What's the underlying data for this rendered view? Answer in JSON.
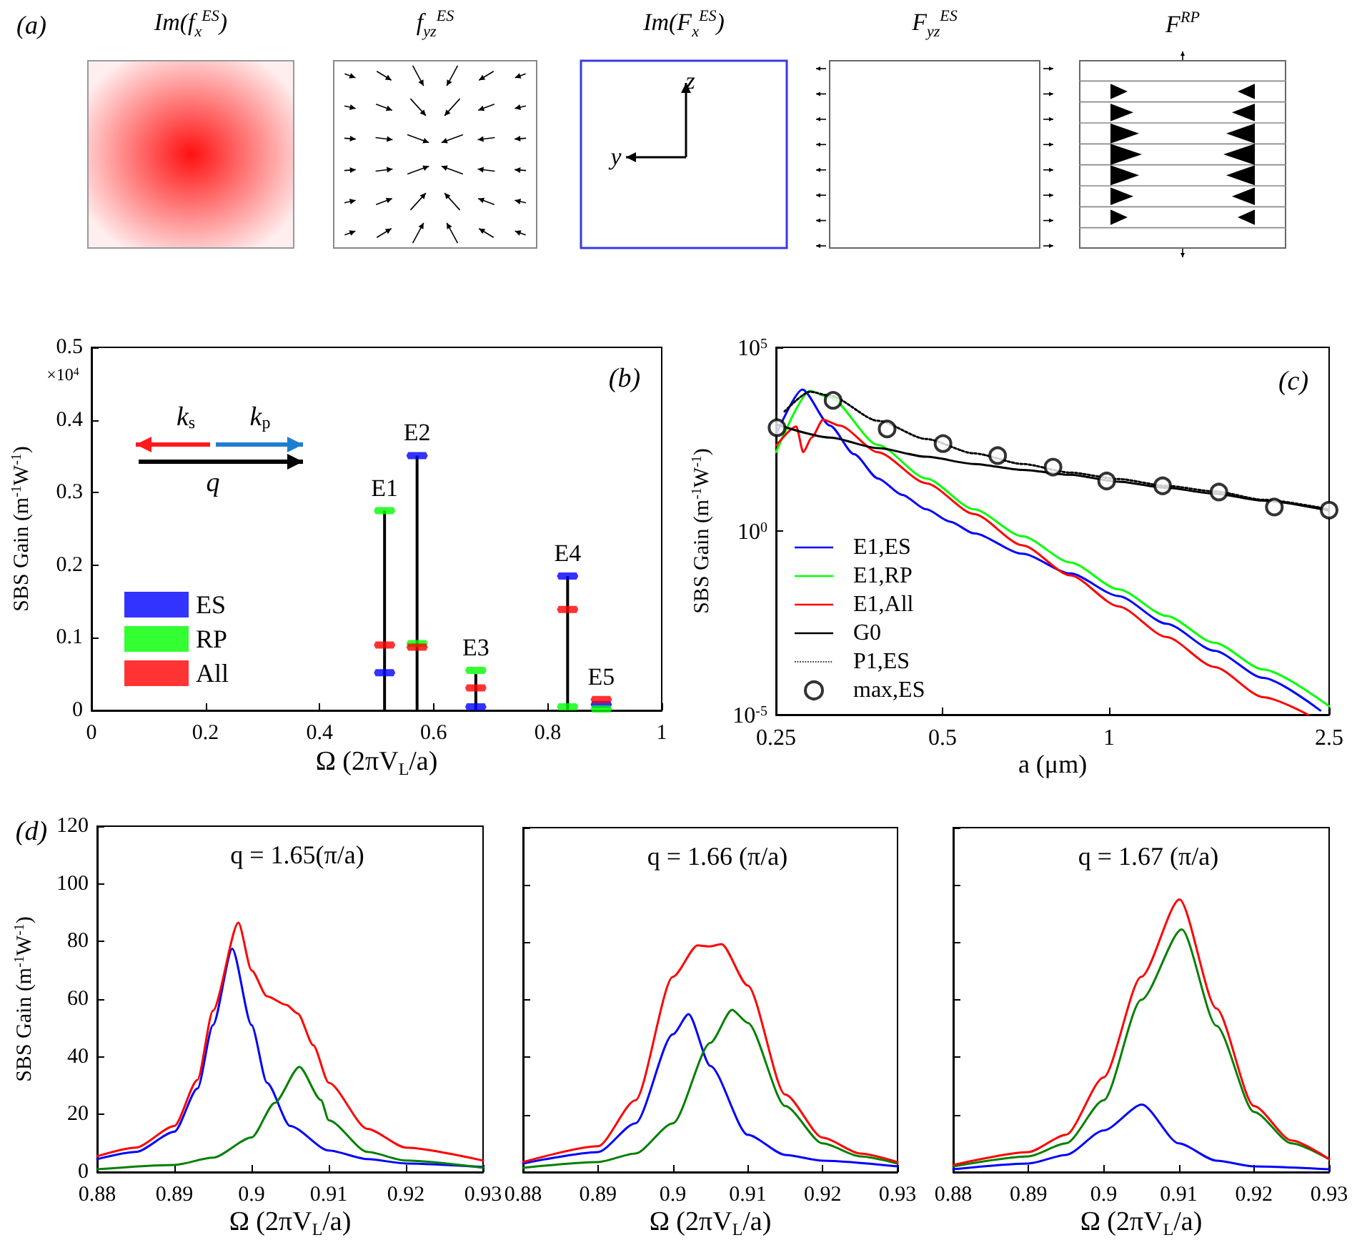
{
  "chart_data": [
    {
      "type": "other",
      "annotations": [
        "(a)",
        "Im(f$_{x}$$^{ES}$)",
        "f$_{yz}$$^{ES}$",
        "Im(F$_{x}$$^{ES}$)",
        "F$_{yz}$$^{ES}$",
        "F$^{RP}$",
        "z",
        "y"
      ]
    },
    {
      "type": "scatter",
      "xlabel": "Ω (2πV$_{L}$/a)",
      "ylabel": "SBS Gain (m$^{-1}$W$^{-1}$)",
      "xlim": [
        0,
        1
      ],
      "xticks": [
        0,
        0.2,
        0.4,
        0.6,
        0.8,
        1
      ],
      "ylim": [
        0,
        0.5
      ],
      "yticks": [
        0,
        0.1,
        0.2,
        0.3,
        0.4,
        0.5
      ],
      "x": [
        0.514,
        0.571,
        0.674,
        0.835,
        0.894
      ],
      "legend": "bottom left",
      "series": [
        {
          "type": "bar",
          "color": "#000000",
          "values": [
            0.275,
            0.351,
            0.05,
            0.185,
            null
          ]
        },
        {
          "name": "ES",
          "color": "#0000ff",
          "values": [
            0.052,
            0.351,
            0.005,
            0.185,
            0.008
          ]
        },
        {
          "name": "RP",
          "color": "#00ff00",
          "values": [
            0.275,
            0.092,
            0.055,
            0.005,
            0.002
          ]
        },
        {
          "name": "All",
          "color": "#ff0000",
          "values": [
            0.09,
            0.087,
            0.031,
            0.139,
            0.015
          ]
        }
      ],
      "annotations": [
        "(b)",
        "×10$^{4}$",
        "k$_{s}$",
        "k$_{p}$",
        "q",
        {
          "text": "E1",
          "x": 0.514,
          "y": 0.275
        },
        {
          "text": "E2",
          "x": 0.571,
          "y": 0.351
        },
        {
          "text": "E3",
          "x": 0.674,
          "y": 0.055
        },
        {
          "text": "E4",
          "x": 0.835,
          "y": 0.185
        },
        {
          "text": "E5",
          "x": 0.894,
          "y": 0.015
        }
      ]
    },
    {
      "type": "line",
      "log": "xy",
      "xlabel": "a (μm)",
      "ylabel": "SBS Gain (m$^{-1}$W$^{-1}$)",
      "xlim": [
        0.25,
        2.5
      ],
      "xticks": [
        0.25,
        0.5,
        1,
        2.5
      ],
      "ylim": [
        1e-05,
        100000
      ],
      "yticks": [
        {
          "value": 1e-05,
          "label": "10$^{-5}$"
        },
        {
          "value": 1,
          "label": "10$^{0}$"
        },
        {
          "value": 100000,
          "label": "10$^{5}$"
        }
      ],
      "legend": "bottom left",
      "marker": "none",
      "annotations": [
        "(c)"
      ],
      "series": [
        {
          "name": "E1,ES",
          "color": "#0000ff",
          "x": [
            0.251,
            0.279,
            0.313,
            0.346,
            0.382,
            0.423,
            0.467,
            0.516,
            0.57,
            0.697,
            0.851,
            1.04,
            1.27,
            1.55,
            1.9,
            2.41
          ],
          "values": [
            480,
            7100,
            740,
            123,
            27,
            9.6,
            3.9,
            1.8,
            0.86,
            0.24,
            0.07,
            0.017,
            0.003,
            0.00055,
            0.0001,
            1.3e-05
          ]
        },
        {
          "name": "E1,RP",
          "color": "#00ff00",
          "x": [
            0.25,
            0.288,
            0.313,
            0.382,
            0.467,
            0.57,
            0.697,
            0.851,
            1.04,
            1.27,
            1.55,
            1.9,
            2.5
          ],
          "values": [
            140,
            6500,
            4300,
            220,
            27,
            3.9,
            0.72,
            0.14,
            0.026,
            0.0049,
            0.00091,
            0.00017,
            1.7e-05
          ]
        },
        {
          "name": "E1,All",
          "color": "#ff0000",
          "x": [
            0.25,
            0.272,
            0.28,
            0.29,
            0.304,
            0.326,
            0.382,
            0.467,
            0.57,
            0.697,
            0.851,
            1.04,
            1.27,
            1.55,
            1.9,
            2.29
          ],
          "values": [
            210,
            700,
            140,
            350,
            1070,
            740,
            140,
            20,
            2.9,
            0.41,
            0.062,
            0.0089,
            0.0013,
            0.0002,
            3e-05,
            1e-05
          ]
        },
        {
          "name": "G0",
          "color": "#000000",
          "x": [
            0.25,
            0.313,
            0.382,
            0.467,
            0.57,
            0.697,
            0.851,
            1.04,
            1.27,
            1.55,
            1.9,
            2.5
          ],
          "values": [
            800,
            350,
            180,
            105,
            67,
            46,
            34,
            22,
            15,
            10.4,
            6.7,
            3.6
          ]
        },
        {
          "name": "P1,ES",
          "color": "#000000",
          "line_style": "dotted",
          "x": [
            0.259,
            0.288,
            0.313,
            0.382,
            0.467,
            0.57,
            0.697,
            0.851,
            1.04,
            1.27,
            1.55,
            1.9,
            2.5
          ],
          "values": [
            1800,
            6200,
            4800,
            1000,
            320,
            130,
            67,
            39,
            26,
            17,
            12,
            7.1,
            3.9
          ]
        },
        {
          "name": "max,ES",
          "type": "scatter",
          "marker": "circle",
          "color": "#000000",
          "x": [
            0.251,
            0.317,
            0.397,
            0.501,
            0.629,
            0.792,
            0.99,
            1.25,
            1.58,
            1.99,
            2.5
          ],
          "values": [
            650,
            3600,
            600,
            240,
            113,
            55,
            23,
            17,
            11.5,
            4.5,
            3.7
          ]
        }
      ]
    },
    {
      "type": "line",
      "title": "q = 1.65(π/a)",
      "xlabel": "Ω (2πV$_{L}$/a)",
      "ylabel": "SBS Gain (m$^{-1}$W$^{-1}$)",
      "xlim": [
        0.88,
        0.93
      ],
      "xticks": [
        0.88,
        0.89,
        0.9,
        0.91,
        0.92,
        0.93
      ],
      "ylim": [
        0,
        120
      ],
      "yticks": [
        0,
        20,
        40,
        60,
        80,
        100,
        120
      ],
      "marker": "none",
      "annotations": [
        "(d)"
      ],
      "series": [
        {
          "color": "#0000ff",
          "x": [
            0.88,
            0.885,
            0.89,
            0.893,
            0.895,
            0.8975,
            0.9,
            0.902,
            0.905,
            0.91,
            0.915,
            0.92,
            0.93
          ],
          "values": [
            4.5,
            7,
            14,
            29,
            51,
            77.5,
            51,
            31,
            16,
            7.5,
            4.5,
            3,
            1.8
          ]
        },
        {
          "color": "#008000",
          "x": [
            0.88,
            0.89,
            0.895,
            0.9,
            0.903,
            0.9062,
            0.909,
            0.91,
            0.915,
            0.92,
            0.93
          ],
          "values": [
            1,
            2.5,
            5,
            12,
            24,
            36.5,
            25,
            18,
            7,
            4,
            1.5
          ]
        },
        {
          "color": "#ff0000",
          "x": [
            0.88,
            0.885,
            0.89,
            0.893,
            0.895,
            0.8983,
            0.9,
            0.902,
            0.9045,
            0.906,
            0.908,
            0.91,
            0.915,
            0.92,
            0.93
          ],
          "values": [
            5.5,
            8.5,
            16,
            32,
            56,
            86.5,
            70,
            61,
            58,
            55,
            44,
            31,
            15,
            8.5,
            4
          ]
        }
      ]
    },
    {
      "type": "line",
      "title": "q = 1.66 (π/a)",
      "xlabel": "Ω (2πV$_{L}$/a)",
      "xlim": [
        0.88,
        0.93
      ],
      "xticks": [
        0.88,
        0.89,
        0.9,
        0.91,
        0.92,
        0.93
      ],
      "ylim": [
        0,
        120
      ],
      "yticks": [
        0,
        20,
        40,
        60,
        80,
        100,
        120
      ],
      "tick_labels": "x",
      "marker": "none",
      "series": [
        {
          "color": "#0000ff",
          "x": [
            0.88,
            0.89,
            0.895,
            0.9,
            0.9021,
            0.905,
            0.91,
            0.915,
            0.92,
            0.93
          ],
          "values": [
            3,
            7,
            17,
            48,
            55,
            37,
            13,
            6,
            4,
            2
          ]
        },
        {
          "color": "#008000",
          "x": [
            0.88,
            0.89,
            0.895,
            0.9,
            0.905,
            0.9079,
            0.91,
            0.915,
            0.92,
            0.925,
            0.93
          ],
          "values": [
            1.5,
            3.5,
            6.5,
            17,
            45,
            56.5,
            52,
            23,
            10,
            5.5,
            3
          ]
        },
        {
          "color": "#ff0000",
          "x": [
            0.88,
            0.89,
            0.895,
            0.9,
            0.9033,
            0.9048,
            0.9065,
            0.91,
            0.915,
            0.92,
            0.925,
            0.93
          ],
          "values": [
            3.5,
            9,
            25,
            68,
            79,
            78.6,
            79.4,
            65,
            27,
            12,
            6.5,
            3.5
          ]
        }
      ]
    },
    {
      "type": "line",
      "title": "q = 1.67 (π/a)",
      "xlabel": "Ω (2πV$_{L}$/a)",
      "xlim": [
        0.88,
        0.93
      ],
      "xticks": [
        0.88,
        0.89,
        0.9,
        0.91,
        0.92,
        0.93
      ],
      "ylim": [
        0,
        120
      ],
      "yticks": [
        0,
        20,
        40,
        60,
        80,
        100,
        120
      ],
      "tick_labels": "x",
      "marker": "none",
      "series": [
        {
          "color": "#0000ff",
          "x": [
            0.88,
            0.89,
            0.895,
            0.9,
            0.9051,
            0.91,
            0.915,
            0.92,
            0.93
          ],
          "values": [
            1,
            3,
            6,
            14.5,
            23.5,
            10,
            4,
            2,
            1
          ]
        },
        {
          "color": "#008000",
          "x": [
            0.88,
            0.89,
            0.895,
            0.9,
            0.905,
            0.9104,
            0.915,
            0.92,
            0.925,
            0.93
          ],
          "values": [
            2,
            5.5,
            10,
            25,
            60,
            84.5,
            51,
            21,
            10,
            4.5
          ]
        },
        {
          "color": "#ff0000",
          "x": [
            0.88,
            0.89,
            0.895,
            0.9,
            0.905,
            0.9101,
            0.915,
            0.92,
            0.925,
            0.93
          ],
          "values": [
            2.5,
            7,
            13,
            33,
            68,
            95,
            57,
            23,
            11,
            4.5
          ]
        }
      ]
    }
  ]
}
